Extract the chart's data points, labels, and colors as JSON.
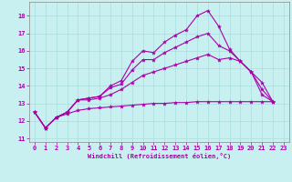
{
  "background_color": "#c8f0f0",
  "grid_color": "#aadddd",
  "line_color": "#aa00aa",
  "xlabel": "Windchill (Refroidissement éolien,°C)",
  "xlim": [
    -0.5,
    23.5
  ],
  "ylim": [
    10.8,
    18.8
  ],
  "yticks": [
    11,
    12,
    13,
    14,
    15,
    16,
    17,
    18
  ],
  "xticks": [
    0,
    1,
    2,
    3,
    4,
    5,
    6,
    7,
    8,
    9,
    10,
    11,
    12,
    13,
    14,
    15,
    16,
    17,
    18,
    19,
    20,
    21,
    22,
    23
  ],
  "x_vals": [
    0,
    1,
    2,
    3,
    4,
    5,
    6,
    7,
    8,
    9,
    10,
    11,
    12,
    13,
    14,
    15,
    16,
    17,
    18,
    19,
    20,
    21,
    22
  ],
  "curves": [
    [
      12.5,
      11.6,
      12.2,
      12.5,
      13.2,
      13.3,
      13.4,
      14.0,
      14.3,
      15.4,
      16.0,
      15.9,
      16.5,
      16.9,
      17.2,
      18.0,
      18.3,
      17.4,
      16.1,
      15.4,
      14.8,
      13.5,
      13.1
    ],
    [
      12.5,
      11.6,
      12.2,
      12.5,
      13.2,
      13.3,
      13.4,
      13.9,
      14.1,
      14.9,
      15.5,
      15.5,
      15.9,
      16.2,
      16.5,
      16.8,
      17.0,
      16.3,
      16.0,
      15.4,
      14.8,
      13.8,
      13.1
    ],
    [
      12.5,
      11.6,
      12.2,
      12.5,
      13.2,
      13.2,
      13.3,
      13.5,
      13.8,
      14.2,
      14.6,
      14.8,
      15.0,
      15.2,
      15.4,
      15.6,
      15.8,
      15.5,
      15.6,
      15.4,
      14.8,
      14.2,
      13.1
    ],
    [
      12.5,
      11.6,
      12.2,
      12.4,
      12.6,
      12.7,
      12.75,
      12.8,
      12.85,
      12.9,
      12.95,
      13.0,
      13.0,
      13.05,
      13.05,
      13.1,
      13.1,
      13.1,
      13.1,
      13.1,
      13.1,
      13.1,
      13.1
    ]
  ]
}
